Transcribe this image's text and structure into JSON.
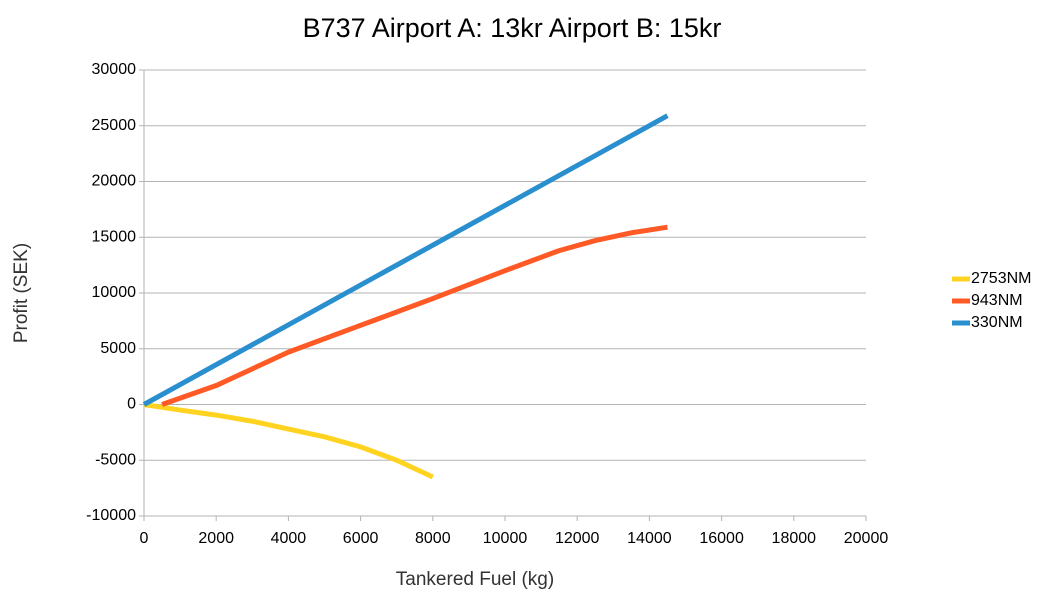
{
  "chart_data": {
    "type": "line",
    "title": "B737 Airport A: 13kr Airport B: 15kr",
    "x_label": "Tankered Fuel (kg)",
    "y_label": "Profit (SEK)",
    "xlim": [
      0,
      20000
    ],
    "xticks": [
      0,
      2000,
      4000,
      6000,
      8000,
      10000,
      12000,
      14000,
      16000,
      18000,
      20000
    ],
    "ylim": [
      -10000,
      30000
    ],
    "yticks": [
      -10000,
      -5000,
      0,
      5000,
      10000,
      15000,
      20000,
      25000,
      30000
    ],
    "grid": true,
    "legend": "right",
    "series": [
      {
        "name": "2753NM",
        "color": "#ffd320",
        "x": [
          0,
          1000,
          2000,
          3000,
          4000,
          5000,
          6000,
          7000,
          8000
        ],
        "values": [
          0,
          -500,
          -950,
          -1500,
          -2200,
          -2900,
          -3800,
          -5000,
          -6500
        ]
      },
      {
        "name": "943NM",
        "color": "#ff5a26",
        "x": [
          500,
          2000,
          4000,
          6000,
          8000,
          10000,
          11500,
          12500,
          13500,
          14500
        ],
        "values": [
          0,
          1700,
          4700,
          7100,
          9500,
          12000,
          13800,
          14700,
          15400,
          15900
        ]
      },
      {
        "name": "330NM",
        "color": "#2a8fcf",
        "x": [
          0,
          14500
        ],
        "values": [
          0,
          25900
        ]
      }
    ]
  }
}
